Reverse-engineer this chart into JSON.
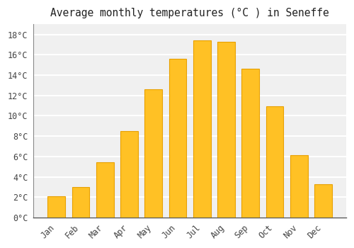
{
  "title": "Average monthly temperatures (°C ) in Seneffe",
  "months": [
    "Jan",
    "Feb",
    "Mar",
    "Apr",
    "May",
    "Jun",
    "Jul",
    "Aug",
    "Sep",
    "Oct",
    "Nov",
    "Dec"
  ],
  "values": [
    2.1,
    3.0,
    5.4,
    8.5,
    12.6,
    15.6,
    17.4,
    17.3,
    14.6,
    10.9,
    6.1,
    3.3
  ],
  "bar_color_main": "#FFC125",
  "bar_color_edge": "#E8A000",
  "ylim": [
    0,
    19
  ],
  "yticks": [
    0,
    2,
    4,
    6,
    8,
    10,
    12,
    14,
    16,
    18
  ],
  "background_color": "#ffffff",
  "plot_bg_color": "#f0f0f0",
  "grid_color": "#ffffff",
  "title_fontsize": 10.5,
  "tick_fontsize": 8.5,
  "font_family": "monospace"
}
